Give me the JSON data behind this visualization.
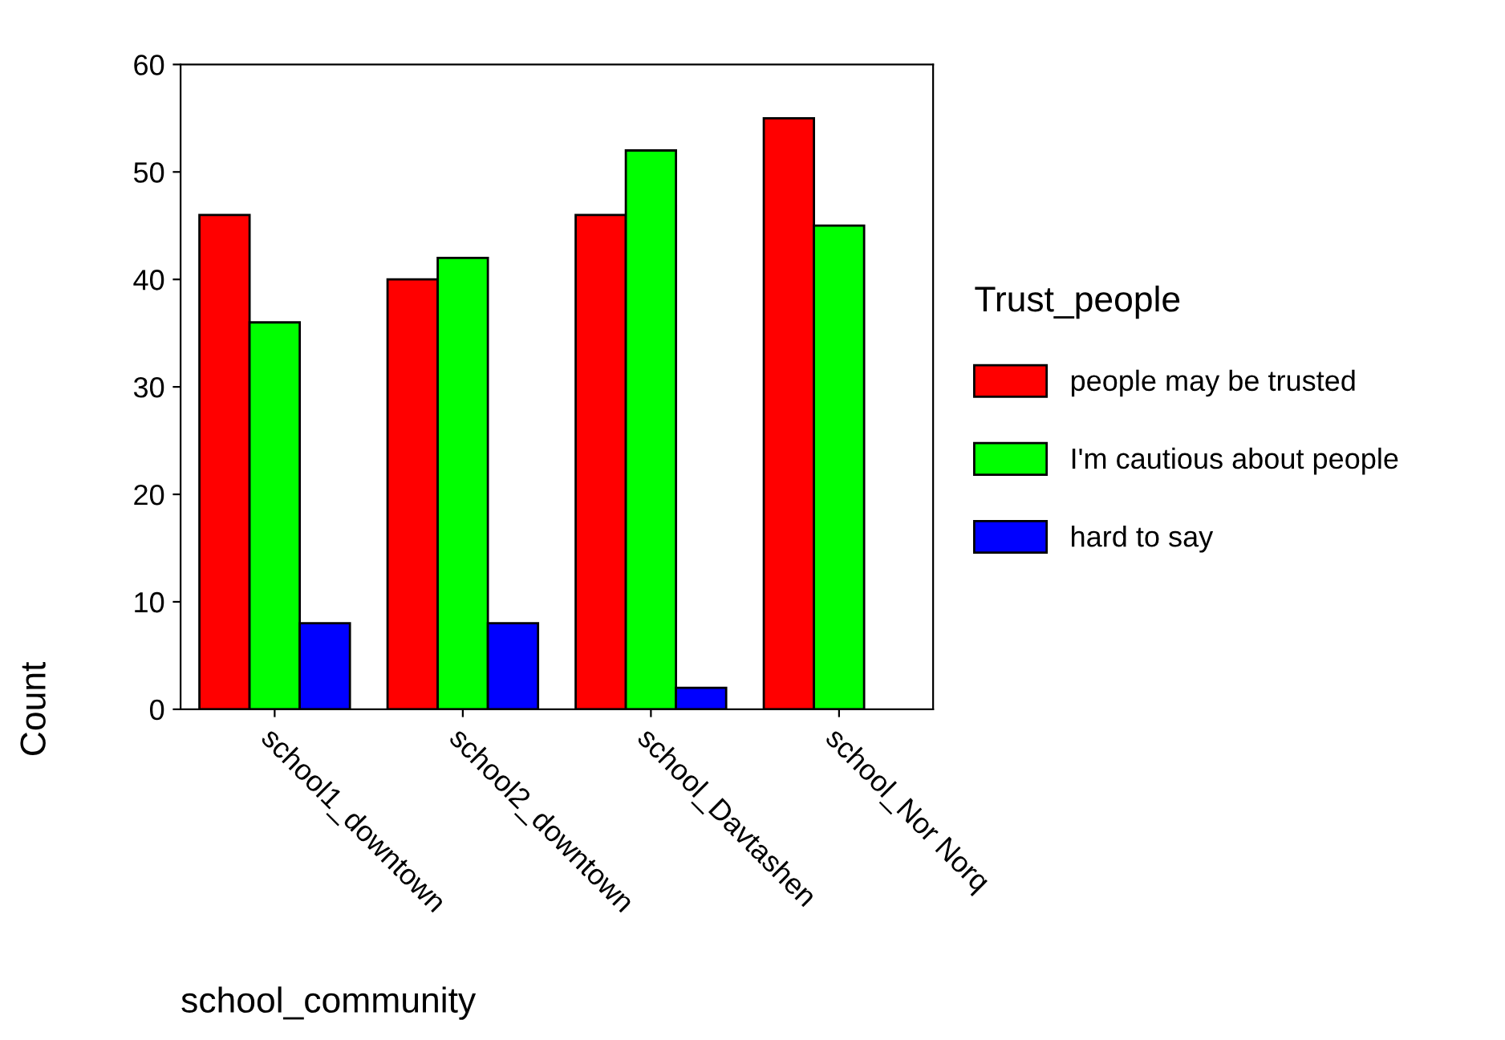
{
  "chart_data": {
    "type": "bar",
    "xlabel": "school_community",
    "ylabel": "Count",
    "legend_title": "Trust_people",
    "legend": "right",
    "categories": [
      "school1_downtown",
      "school2_downtown",
      "school_Davtashen",
      "school_Nor Norq"
    ],
    "series": [
      {
        "name": "people may be trusted",
        "color": "#ff0000",
        "values": [
          46,
          40,
          46,
          55
        ]
      },
      {
        "name": "I'm cautious about people",
        "color": "#00ff00",
        "values": [
          36,
          42,
          52,
          45
        ]
      },
      {
        "name": "hard to say",
        "color": "#0000ff",
        "values": [
          8,
          8,
          2,
          null
        ]
      }
    ],
    "ylim": [
      0,
      60
    ],
    "yticks": [
      0,
      10,
      20,
      30,
      40,
      50,
      60
    ],
    "grid": false
  }
}
